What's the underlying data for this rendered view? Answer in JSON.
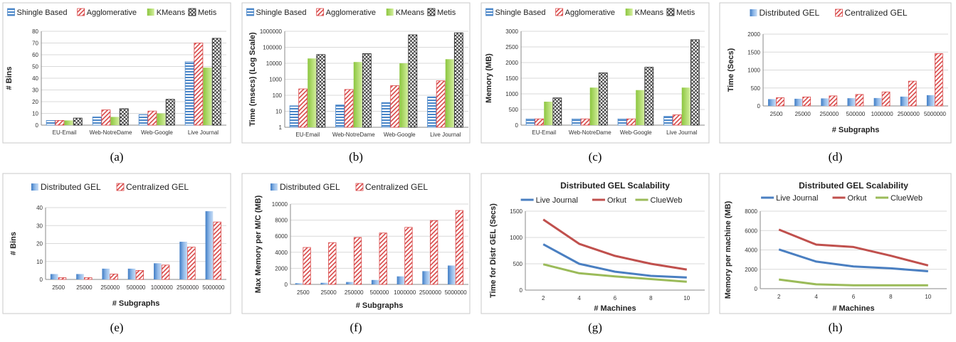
{
  "palette": {
    "shingle": "#4a86c8",
    "agglomerative": "#d94848",
    "kmeans": "#9acd4e",
    "metis": "#222222",
    "distributed": "#4a86c8",
    "centralized": "#d94848",
    "live_journal": "#4a7fc1",
    "orkut": "#c0504d",
    "clueweb": "#9bbb59"
  },
  "chart_data": [
    {
      "type": "bar",
      "caption": "(a)",
      "categories": [
        "EU-Email",
        "Web-NotreDame",
        "Web-Google",
        "Live Journal"
      ],
      "series": [
        {
          "name": "Shingle Based",
          "style": "shingle",
          "values": [
            4,
            7,
            9,
            54
          ]
        },
        {
          "name": "Agglomerative",
          "style": "agglomerative",
          "values": [
            4,
            13,
            12,
            70
          ]
        },
        {
          "name": "KMeans",
          "style": "kmeans",
          "values": [
            4,
            7,
            10,
            49
          ]
        },
        {
          "name": "Metis",
          "style": "metis",
          "values": [
            6,
            14,
            22,
            74
          ]
        }
      ],
      "xlabel": "",
      "ylabel": "# Bins",
      "ylim": [
        0,
        80
      ],
      "yticks": [
        0,
        10,
        20,
        30,
        40,
        50,
        60,
        70,
        80
      ],
      "yscale": "linear",
      "grid": true,
      "legend": "top"
    },
    {
      "type": "bar",
      "caption": "(b)",
      "categories": [
        "EU-Email",
        "Web-NotreDame",
        "Web-Google",
        "Live Journal"
      ],
      "series": [
        {
          "name": "Shingle Based",
          "style": "shingle",
          "values": [
            22,
            25,
            35,
            80
          ]
        },
        {
          "name": "Agglomerative",
          "style": "agglomerative",
          "values": [
            250,
            230,
            400,
            800
          ]
        },
        {
          "name": "KMeans",
          "style": "kmeans",
          "values": [
            20000,
            12000,
            10000,
            18000
          ]
        },
        {
          "name": "Metis",
          "style": "metis",
          "values": [
            35000,
            40000,
            600000,
            800000
          ]
        }
      ],
      "xlabel": "",
      "ylabel": "Time (msecs) (Log Scale)",
      "ylim": [
        1,
        1000000
      ],
      "yticks": [
        1,
        10,
        100,
        1000,
        10000,
        100000,
        1000000
      ],
      "yscale": "log",
      "grid": true,
      "legend": "top"
    },
    {
      "type": "bar",
      "caption": "(c)",
      "categories": [
        "EU-Email",
        "Web-NotreDame",
        "Web-Google",
        "Live Journal"
      ],
      "series": [
        {
          "name": "Shingle Based",
          "style": "shingle",
          "values": [
            200,
            200,
            200,
            280
          ]
        },
        {
          "name": "Agglomerative",
          "style": "agglomerative",
          "values": [
            200,
            200,
            200,
            330
          ]
        },
        {
          "name": "KMeans",
          "style": "kmeans",
          "values": [
            750,
            1200,
            1120,
            1200
          ]
        },
        {
          "name": "Metis",
          "style": "metis",
          "values": [
            870,
            1670,
            1850,
            2730
          ]
        }
      ],
      "xlabel": "",
      "ylabel": "Memory (MB)",
      "ylim": [
        0,
        3000
      ],
      "yticks": [
        0,
        500,
        1000,
        1500,
        2000,
        2500,
        3000
      ],
      "yscale": "linear",
      "grid": true,
      "legend": "top"
    },
    {
      "type": "bar",
      "caption": "(d)",
      "categories": [
        "2500",
        "25000",
        "250000",
        "500000",
        "1000000",
        "2500000",
        "5000000"
      ],
      "series": [
        {
          "name": "Distributed GEL",
          "style": "distributed",
          "values": [
            190,
            200,
            210,
            215,
            220,
            260,
            300
          ]
        },
        {
          "name": "Centralized GEL",
          "style": "centralized",
          "values": [
            230,
            250,
            280,
            320,
            390,
            690,
            1460
          ]
        }
      ],
      "xlabel": "# Subgraphs",
      "ylabel": "Time (Secs)",
      "ylim": [
        0,
        2000
      ],
      "yticks": [
        0,
        500,
        1000,
        1500,
        2000
      ],
      "yscale": "linear",
      "grid": true,
      "legend": "top"
    },
    {
      "type": "bar",
      "caption": "(e)",
      "categories": [
        "2500",
        "25000",
        "250000",
        "500000",
        "1000000",
        "2500000",
        "5000000"
      ],
      "series": [
        {
          "name": "Distributed GEL",
          "style": "distributed",
          "values": [
            3,
            3,
            6,
            6,
            9,
            21,
            38
          ]
        },
        {
          "name": "Centralized GEL",
          "style": "centralized",
          "values": [
            1,
            1,
            3,
            5,
            8,
            18,
            32
          ]
        }
      ],
      "xlabel": "# Subgraphs",
      "ylabel": "# Bins",
      "ylim": [
        0,
        40
      ],
      "yticks": [
        0,
        10,
        20,
        30,
        40
      ],
      "yscale": "linear",
      "grid": true,
      "legend": "top"
    },
    {
      "type": "bar",
      "caption": "(f)",
      "categories": [
        "2500",
        "25000",
        "250000",
        "500000",
        "1000000",
        "2500000",
        "5000000"
      ],
      "series": [
        {
          "name": "Distributed GEL",
          "style": "distributed",
          "values": [
            150,
            200,
            300,
            550,
            1000,
            1650,
            2350
          ]
        },
        {
          "name": "Centralized GEL",
          "style": "centralized",
          "values": [
            4600,
            5200,
            5850,
            6400,
            7100,
            7950,
            9200
          ]
        }
      ],
      "xlabel": "# Subgraphs",
      "ylabel": "Max Memory per M/C (MB)",
      "ylim": [
        0,
        10000
      ],
      "yticks": [
        0,
        2000,
        4000,
        6000,
        8000,
        10000
      ],
      "yscale": "linear",
      "grid": true,
      "legend": "top"
    },
    {
      "type": "line",
      "caption": "(g)",
      "title": "Distributed GEL Scalability",
      "x": [
        2,
        4,
        6,
        8,
        10
      ],
      "series": [
        {
          "name": "Live Journal",
          "style": "live_journal",
          "values": [
            870,
            500,
            350,
            270,
            240
          ]
        },
        {
          "name": "Orkut",
          "style": "orkut",
          "values": [
            1340,
            880,
            650,
            500,
            390
          ]
        },
        {
          "name": "ClueWeb",
          "style": "clueweb",
          "values": [
            490,
            320,
            260,
            210,
            160
          ]
        }
      ],
      "xlabel": "# Machines",
      "ylabel": "Time for Distr GEL (Secs)",
      "xlim": [
        1,
        11
      ],
      "xticks": [
        2,
        4,
        6,
        8,
        10
      ],
      "ylim": [
        0,
        1500
      ],
      "yticks": [
        0,
        500,
        1000,
        1500
      ],
      "yscale": "linear",
      "grid": true,
      "legend": "top"
    },
    {
      "type": "line",
      "caption": "(h)",
      "title": "Distributed GEL Scalability",
      "x": [
        2,
        4,
        6,
        8,
        10
      ],
      "series": [
        {
          "name": "Live Journal",
          "style": "live_journal",
          "values": [
            4050,
            2800,
            2300,
            2100,
            1800
          ]
        },
        {
          "name": "Orkut",
          "style": "orkut",
          "values": [
            6100,
            4550,
            4300,
            3400,
            2400
          ]
        },
        {
          "name": "ClueWeb",
          "style": "clueweb",
          "values": [
            950,
            450,
            350,
            350,
            350
          ]
        }
      ],
      "xlabel": "# Machines",
      "ylabel": "Memory per machine (MB)",
      "xlim": [
        1,
        11
      ],
      "xticks": [
        2,
        4,
        6,
        8,
        10
      ],
      "ylim": [
        0,
        8000
      ],
      "yticks": [
        0,
        2000,
        4000,
        6000,
        8000
      ],
      "yscale": "linear",
      "grid": true,
      "legend": "top"
    }
  ]
}
